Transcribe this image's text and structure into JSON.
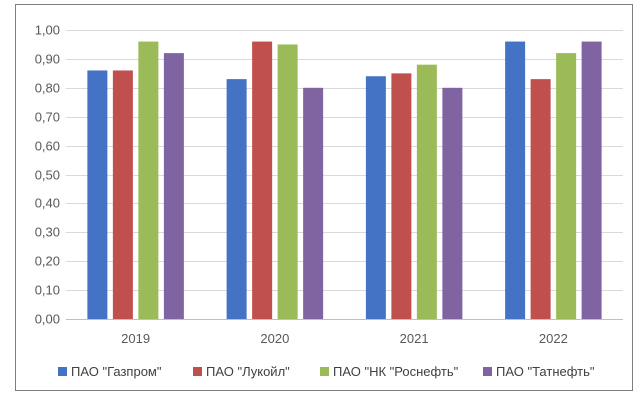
{
  "chart_data": {
    "type": "bar",
    "categories": [
      "2019",
      "2020",
      "2021",
      "2022"
    ],
    "series": [
      {
        "name": "ПАО \"Газпром\"",
        "color": "#4472C4",
        "values": [
          0.86,
          0.83,
          0.84,
          0.96
        ]
      },
      {
        "name": "ПАО \"Лукойл\"",
        "color": "#C0504D",
        "values": [
          0.86,
          0.96,
          0.85,
          0.83
        ]
      },
      {
        "name": "ПАО \"НК \"Роснефть\"",
        "color": "#9BBB59",
        "values": [
          0.96,
          0.95,
          0.88,
          0.92
        ]
      },
      {
        "name": "ПАО \"Татнефть\"",
        "color": "#8064A2",
        "values": [
          0.92,
          0.8,
          0.8,
          0.96
        ]
      }
    ],
    "y_ticks": [
      "0,00",
      "0,10",
      "0,20",
      "0,30",
      "0,40",
      "0,50",
      "0,60",
      "0,70",
      "0,80",
      "0,90",
      "1,00"
    ],
    "ylim": [
      0,
      1.0
    ],
    "grid": true,
    "legend_position": "bottom",
    "title": "",
    "xlabel": "",
    "ylabel": ""
  }
}
